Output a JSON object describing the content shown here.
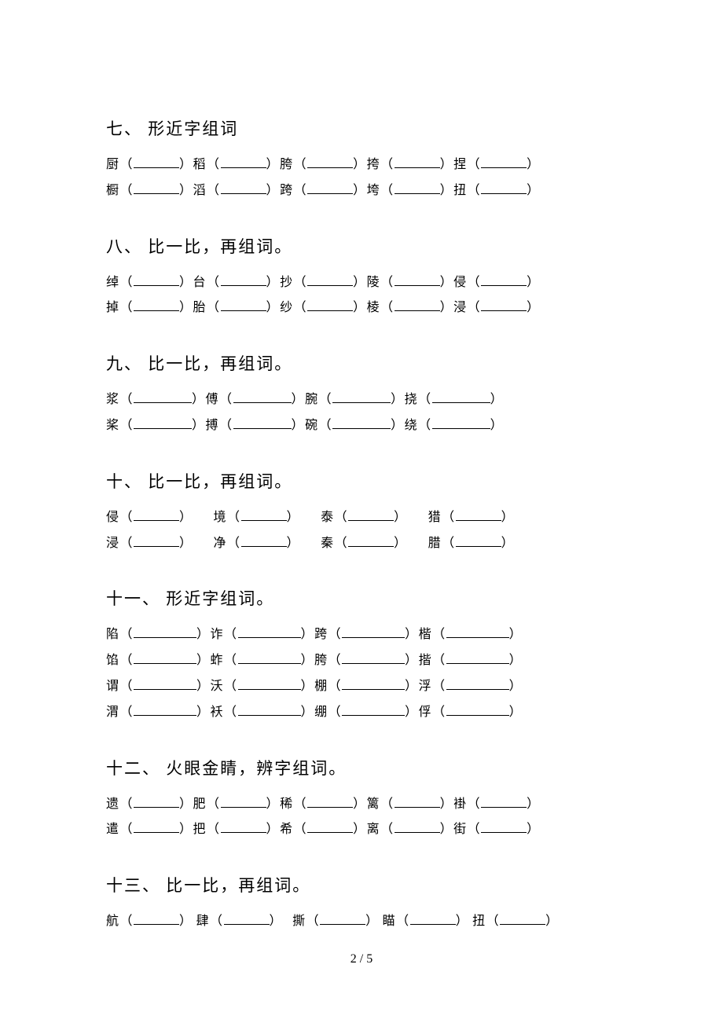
{
  "page_number": "2 / 5",
  "blank_widths": {
    "w5": 58,
    "w4": 74,
    "w3": 80
  },
  "sections": [
    {
      "title": "七、 形近字组词",
      "lines": [
        {
          "cells": [
            "厨",
            "稻",
            "胯",
            "挎",
            "捏"
          ],
          "gap": 0,
          "bw": "w5"
        },
        {
          "cells": [
            "橱",
            "滔",
            "跨",
            "垮",
            "扭"
          ],
          "gap": 0,
          "bw": "w5"
        }
      ]
    },
    {
      "title": "八、 比一比，再组词。",
      "lines": [
        {
          "cells": [
            "绰",
            "台",
            "抄",
            "陵",
            "侵"
          ],
          "gap": 0,
          "bw": "w5"
        },
        {
          "cells": [
            "掉",
            "胎",
            "纱",
            "棱",
            "浸"
          ],
          "gap": 0,
          "bw": "w5"
        }
      ]
    },
    {
      "title": "九、 比一比，再组词。",
      "lines": [
        {
          "cells": [
            "浆",
            "傅",
            "腕",
            "挠"
          ],
          "gap": 0,
          "bw": "w4"
        },
        {
          "cells": [
            "桨",
            "搏",
            "碗",
            "绕"
          ],
          "gap": 0,
          "bw": "w4"
        }
      ]
    },
    {
      "title": "十、 比一比，再组词。",
      "lines": [
        {
          "cells": [
            "侵",
            "境",
            "泰",
            "猎"
          ],
          "gap": 26,
          "bw": "w5"
        },
        {
          "cells": [
            "浸",
            "净",
            "秦",
            "腊"
          ],
          "gap": 26,
          "bw": "w5"
        }
      ]
    },
    {
      "title": "十一、 形近字组词。",
      "lines": [
        {
          "cells": [
            "陷",
            "诈",
            "跨",
            "楷"
          ],
          "gap": 0,
          "bw": "w3"
        },
        {
          "cells": [
            "馅",
            "蚱",
            "胯",
            "揩"
          ],
          "gap": 0,
          "bw": "w3"
        },
        {
          "cells": [
            "谓",
            "沃",
            "棚",
            "浮"
          ],
          "gap": 0,
          "bw": "w3"
        },
        {
          "cells": [
            "渭",
            "袄",
            "绷",
            "俘"
          ],
          "gap": 0,
          "bw": "w3"
        }
      ]
    },
    {
      "title": "十二、 火眼金睛，辨字组词。",
      "lines": [
        {
          "cells": [
            "遗",
            "肥",
            "稀",
            "篱",
            "褂"
          ],
          "gap": 0,
          "bw": "w5"
        },
        {
          "cells": [
            "遣",
            "把",
            "希",
            "离",
            "街"
          ],
          "gap": 0,
          "bw": "w5"
        }
      ]
    },
    {
      "title": "十三、 比一比，再组词。",
      "lines": [
        {
          "cells": [
            "航",
            "肆",
            "撕",
            "瞄",
            "扭"
          ],
          "gap": 4,
          "bw": "w5",
          "gap_before": [
            2
          ]
        }
      ]
    }
  ]
}
